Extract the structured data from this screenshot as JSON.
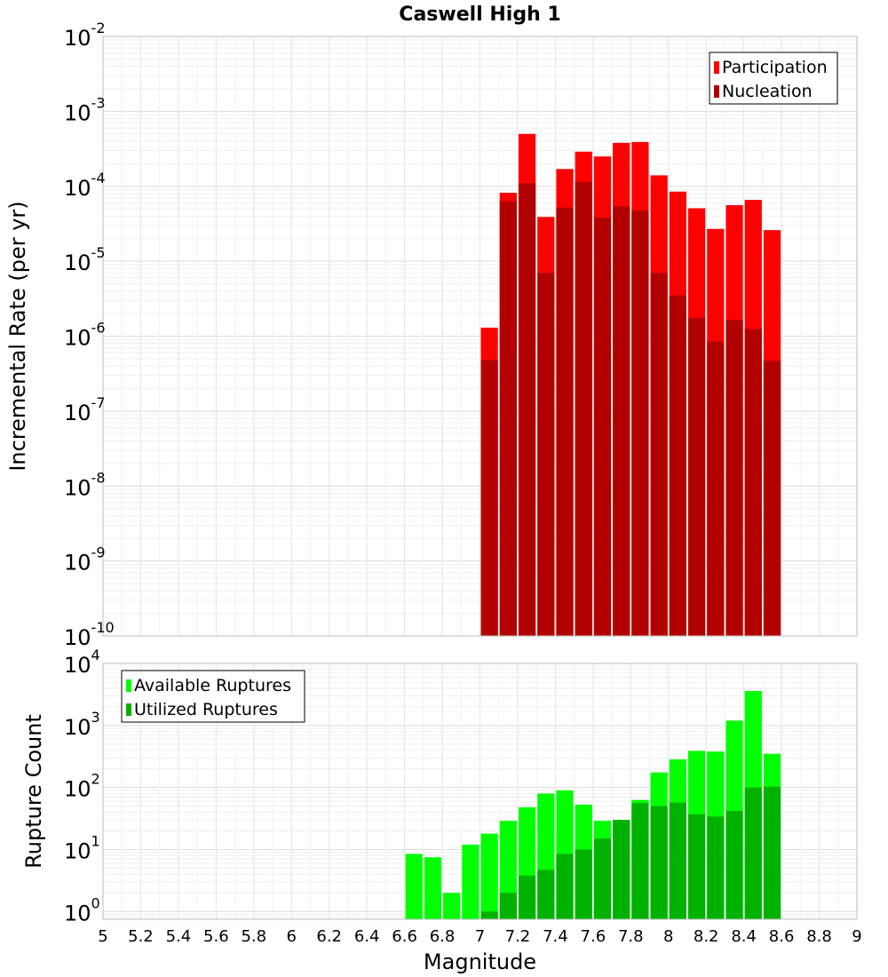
{
  "chart_data": [
    {
      "type": "bar",
      "title": "Caswell High 1",
      "ylabel": "Incremental Rate (per yr)",
      "xlabel": "",
      "y_scale": "log",
      "ylim": [
        1e-10,
        0.01
      ],
      "xlim": [
        5,
        9
      ],
      "grid": true,
      "legend_position": "top-right",
      "overlay": true,
      "x": [
        7.0,
        7.1,
        7.2,
        7.3,
        7.4,
        7.5,
        7.6,
        7.7,
        7.8,
        7.9,
        8.0,
        8.1,
        8.2,
        8.3,
        8.4,
        8.5
      ],
      "series": [
        {
          "name": "Participation",
          "color": "#ff0000",
          "values": [
            1.3e-06,
            8.2e-05,
            0.0005,
            3.9e-05,
            0.00017,
            0.00029,
            0.00025,
            0.00038,
            0.00039,
            0.00014,
            8.5e-05,
            5.1e-05,
            2.7e-05,
            5.6e-05,
            6.6e-05,
            2.6e-05
          ]
        },
        {
          "name": "Nucleation",
          "color": "#b20000",
          "values": [
            4.8e-07,
            6.3e-05,
            0.00011,
            7e-06,
            5.2e-05,
            0.000115,
            3.8e-05,
            5.4e-05,
            4.7e-05,
            7e-06,
            3.5e-06,
            1.75e-06,
            8.5e-07,
            1.65e-06,
            1.25e-06,
            4.7e-07
          ]
        }
      ]
    },
    {
      "type": "bar",
      "title": "",
      "ylabel": "Rupture Count",
      "xlabel": "Magnitude",
      "y_scale": "log",
      "ylim": [
        0.75,
        10000
      ],
      "xlim": [
        5,
        9
      ],
      "grid": true,
      "legend_position": "top-left",
      "overlay": true,
      "x_ticks": [
        "5",
        "5.2",
        "5.4",
        "5.6",
        "5.8",
        "6",
        "6.2",
        "6.4",
        "6.6",
        "6.8",
        "7",
        "7.2",
        "7.4",
        "7.6",
        "7.8",
        "8",
        "8.2",
        "8.4",
        "8.6",
        "8.8",
        "9"
      ],
      "x": [
        6.6,
        6.7,
        6.8,
        6.9,
        7.0,
        7.1,
        7.2,
        7.3,
        7.4,
        7.5,
        7.6,
        7.7,
        7.8,
        7.9,
        8.0,
        8.1,
        8.2,
        8.3,
        8.4,
        8.5
      ],
      "series": [
        {
          "name": "Available Ruptures",
          "color": "#00ff00",
          "values": [
            8.5,
            7.5,
            2,
            12,
            18,
            29,
            48,
            80,
            90,
            53,
            29,
            30,
            63,
            175,
            285,
            390,
            380,
            1200,
            3600,
            350
          ]
        },
        {
          "name": "Utilized Ruptures",
          "color": "#00b200",
          "values": [
            null,
            null,
            null,
            null,
            1,
            2,
            3.8,
            4.7,
            8.5,
            10,
            15,
            30,
            56,
            50,
            57,
            37,
            34,
            42,
            100,
            103
          ]
        }
      ]
    }
  ]
}
